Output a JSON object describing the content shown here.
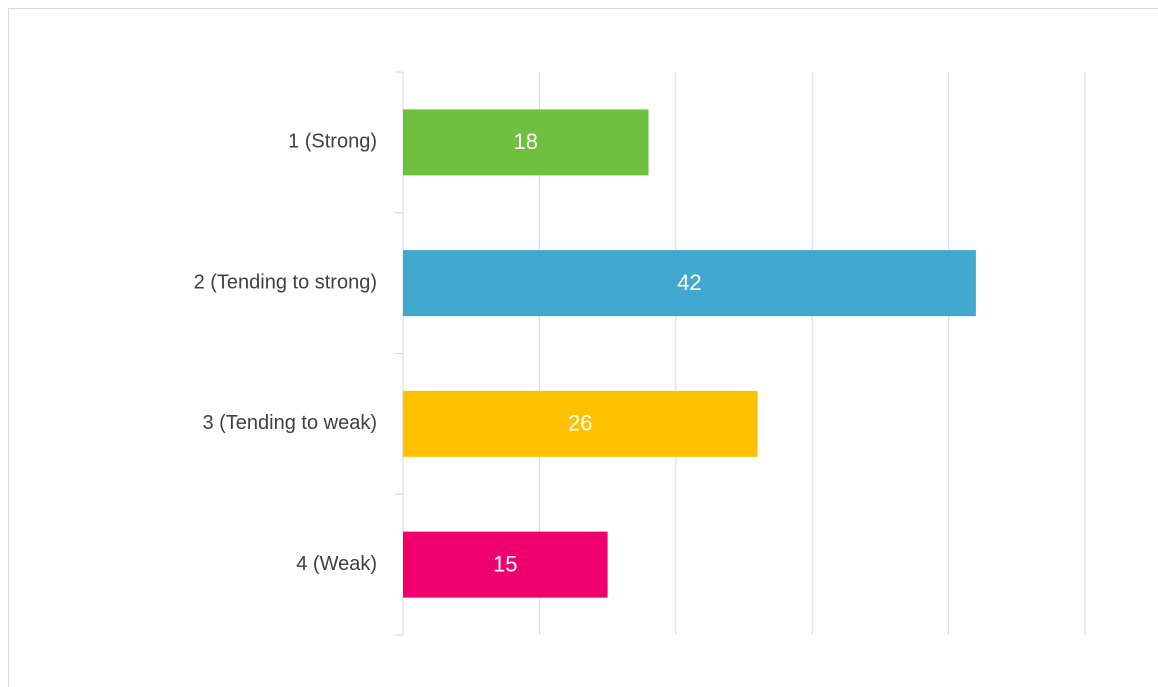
{
  "chart_data": {
    "type": "bar",
    "orientation": "horizontal",
    "categories": [
      "1 (Strong)",
      "2 (Tending to strong)",
      "3 (Tending to weak)",
      "4 (Weak)"
    ],
    "values": [
      18,
      42,
      26,
      15
    ],
    "colors": [
      "#70c040",
      "#41a8cf",
      "#ffc000",
      "#f0006e"
    ],
    "xlim": [
      0,
      50
    ],
    "xticks": [
      0,
      10,
      20,
      30,
      40,
      50
    ],
    "grid": true
  }
}
